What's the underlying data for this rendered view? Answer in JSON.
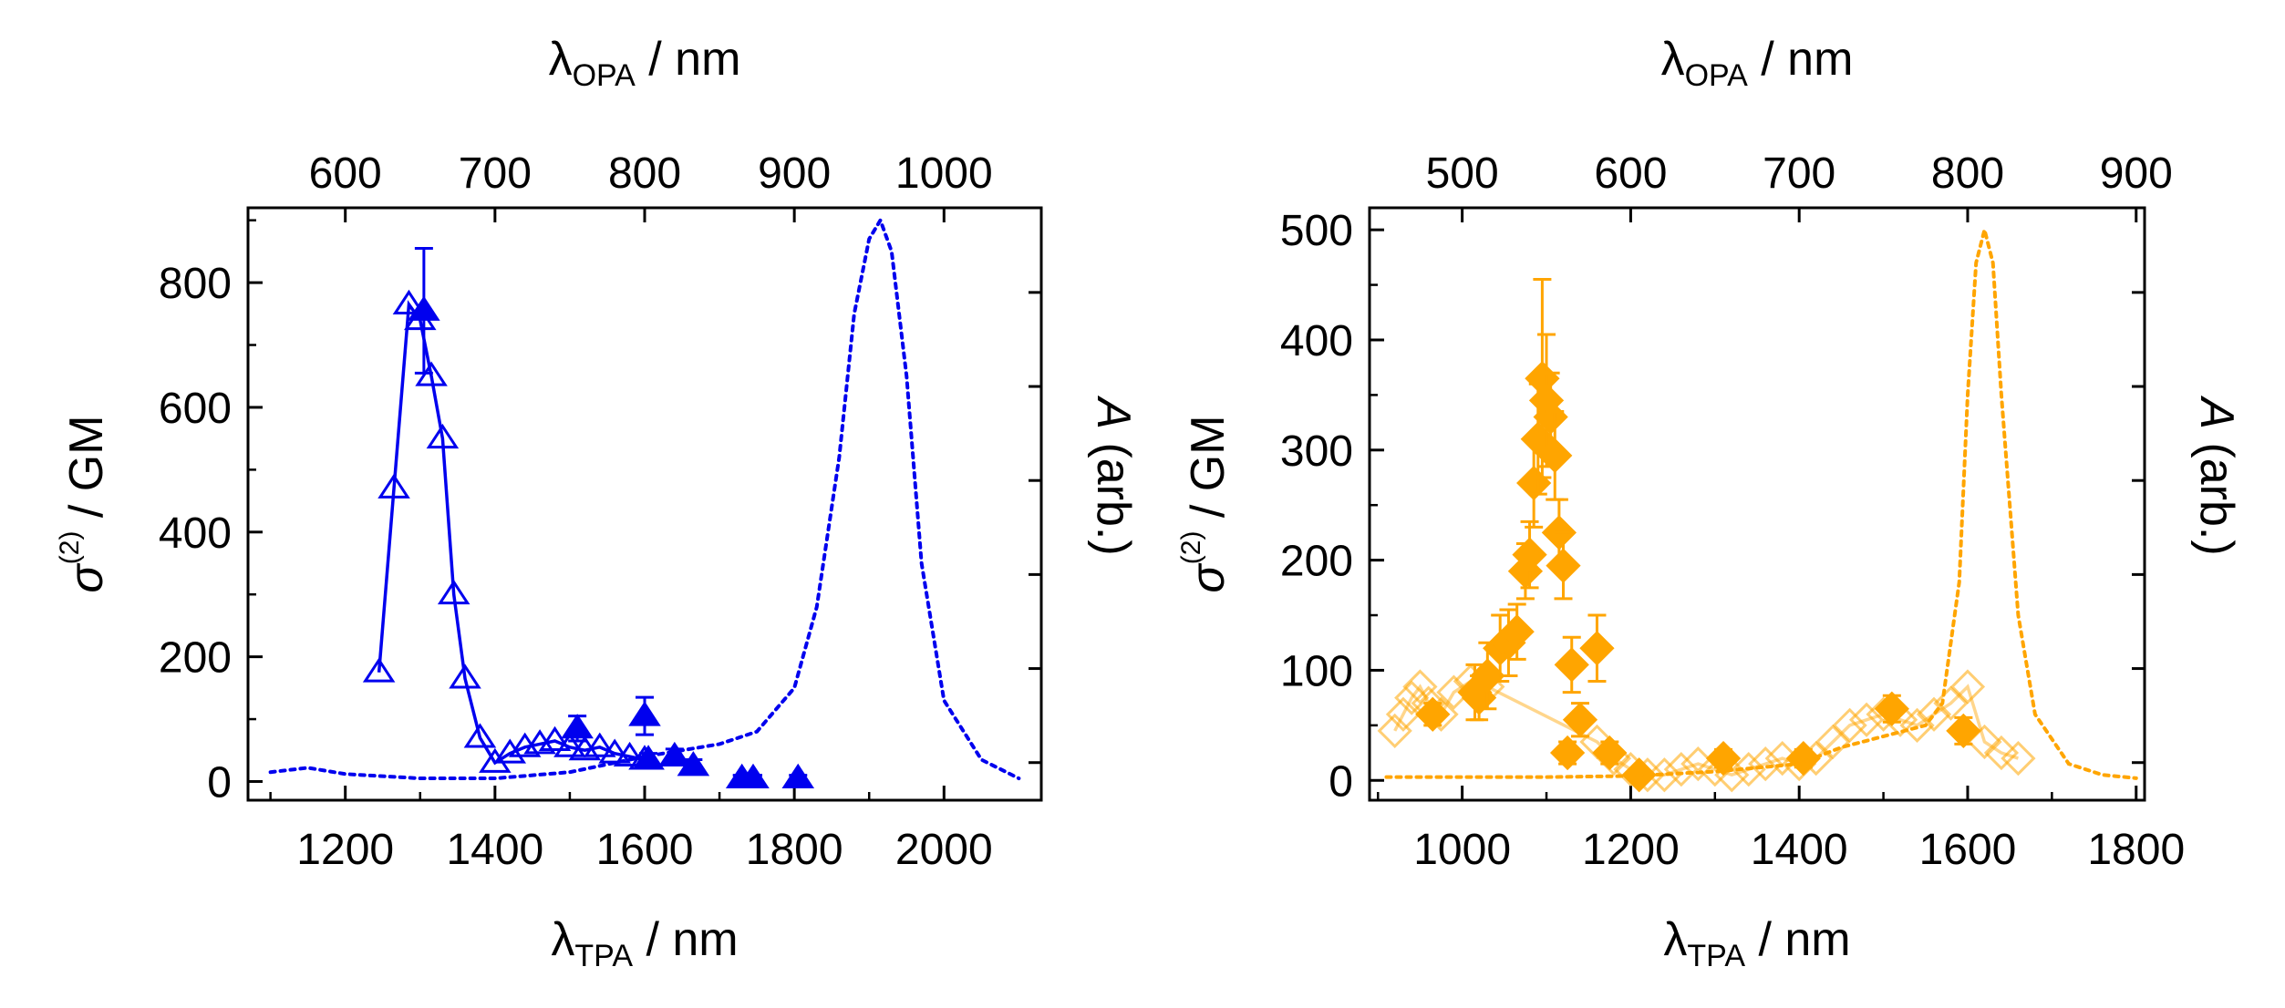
{
  "chart_data": [
    {
      "type": "scatter",
      "panel": "left",
      "color": "#0000ee",
      "xlim": [
        1070,
        2130
      ],
      "ylim": [
        -30,
        920
      ],
      "x_ticks": [
        1200,
        1400,
        1600,
        1800,
        2000
      ],
      "y_ticks": [
        0,
        200,
        400,
        600,
        800
      ],
      "top_ticks": [
        600,
        700,
        800,
        900,
        1000
      ],
      "xlabel": {
        "base": "λ",
        "sub": "TPA",
        "rest": " / nm"
      },
      "top_label": {
        "base": "λ",
        "sub": "OPA",
        "rest": " / nm"
      },
      "ylabel": {
        "base": "σ",
        "sup": "(2)",
        "rest": " / GM"
      },
      "right_label": {
        "base": "A",
        "rest": " (arb.)"
      },
      "series": [
        {
          "name": "open triangles",
          "marker": "triangle-open",
          "connected": true,
          "x": [
            1245,
            1265,
            1285,
            1300,
            1315,
            1330,
            1345,
            1360,
            1380,
            1400,
            1420,
            1440,
            1460,
            1480,
            1500,
            1520,
            1540,
            1560,
            1580,
            1600
          ],
          "y": [
            175,
            470,
            765,
            740,
            650,
            550,
            300,
            165,
            70,
            30,
            45,
            55,
            60,
            65,
            55,
            50,
            55,
            45,
            40,
            35
          ]
        },
        {
          "name": "filled triangles",
          "marker": "triangle-filled",
          "connected": false,
          "x": [
            1305,
            1510,
            1600,
            1605,
            1640,
            1665,
            1730,
            1745,
            1805
          ],
          "y": [
            755,
            85,
            105,
            35,
            40,
            25,
            5,
            5,
            5
          ],
          "err": [
            100,
            20,
            30,
            10,
            12,
            10,
            5,
            5,
            5
          ]
        },
        {
          "name": "absorption",
          "style": "dotted",
          "x": [
            1100,
            1150,
            1200,
            1300,
            1400,
            1500,
            1600,
            1700,
            1750,
            1800,
            1830,
            1860,
            1880,
            1900,
            1915,
            1930,
            1950,
            1970,
            2000,
            2050,
            2100
          ],
          "y": [
            15,
            22,
            12,
            5,
            5,
            15,
            40,
            60,
            80,
            150,
            280,
            520,
            750,
            870,
            900,
            850,
            650,
            350,
            130,
            35,
            5
          ]
        }
      ]
    },
    {
      "type": "scatter",
      "panel": "right",
      "color": "#ffa500",
      "xlim": [
        890,
        1810
      ],
      "ylim": [
        -18,
        520
      ],
      "x_ticks": [
        1000,
        1200,
        1400,
        1600,
        1800
      ],
      "y_ticks": [
        0,
        100,
        200,
        300,
        400,
        500
      ],
      "top_ticks": [
        500,
        600,
        700,
        800,
        900
      ],
      "xlabel": {
        "base": "λ",
        "sub": "TPA",
        "rest": " / nm"
      },
      "top_label": {
        "base": "λ",
        "sub": "OPA",
        "rest": " / nm"
      },
      "ylabel": {
        "base": "σ",
        "sup": "(2)",
        "rest": " / GM"
      },
      "right_label": {
        "base": "A",
        "rest": " (arb.)"
      },
      "series": [
        {
          "name": "open diamonds",
          "marker": "diamond-open",
          "connected": true,
          "x": [
            920,
            930,
            940,
            950,
            960,
            975,
            990,
            1010,
            1030,
            1160,
            1180,
            1200,
            1220,
            1240,
            1260,
            1280,
            1300,
            1320,
            1340,
            1360,
            1380,
            1400,
            1420,
            1440,
            1460,
            1480,
            1500,
            1520,
            1540,
            1560,
            1580,
            1600,
            1620,
            1640,
            1660
          ],
          "y": [
            45,
            60,
            75,
            85,
            70,
            60,
            80,
            90,
            85,
            35,
            20,
            10,
            5,
            5,
            10,
            15,
            10,
            5,
            10,
            15,
            20,
            15,
            20,
            35,
            50,
            55,
            60,
            55,
            50,
            60,
            70,
            85,
            35,
            25,
            20
          ]
        },
        {
          "name": "filled diamonds",
          "marker": "diamond-filled",
          "connected": false,
          "x": [
            965,
            1015,
            1020,
            1030,
            1045,
            1055,
            1065,
            1075,
            1080,
            1085,
            1090,
            1095,
            1100,
            1105,
            1110,
            1115,
            1120,
            1125,
            1130,
            1140,
            1160,
            1175,
            1210,
            1310,
            1405,
            1510,
            1595
          ],
          "y": [
            60,
            80,
            75,
            95,
            120,
            125,
            135,
            190,
            205,
            270,
            310,
            365,
            345,
            330,
            295,
            225,
            195,
            25,
            105,
            55,
            120,
            25,
            5,
            20,
            20,
            65,
            45
          ],
          "err": [
            10,
            25,
            20,
            30,
            30,
            30,
            25,
            25,
            30,
            40,
            50,
            90,
            60,
            40,
            40,
            30,
            30,
            10,
            25,
            15,
            30,
            10,
            5,
            8,
            8,
            12,
            12
          ]
        },
        {
          "name": "absorption",
          "style": "dotted",
          "x": [
            910,
            950,
            1000,
            1100,
            1200,
            1300,
            1400,
            1450,
            1500,
            1550,
            1570,
            1590,
            1600,
            1610,
            1620,
            1630,
            1640,
            1660,
            1680,
            1720,
            1760,
            1800
          ],
          "y": [
            3,
            3,
            3,
            3,
            4,
            8,
            15,
            30,
            40,
            50,
            70,
            180,
            350,
            470,
            500,
            470,
            350,
            150,
            60,
            15,
            5,
            2
          ]
        }
      ]
    }
  ]
}
